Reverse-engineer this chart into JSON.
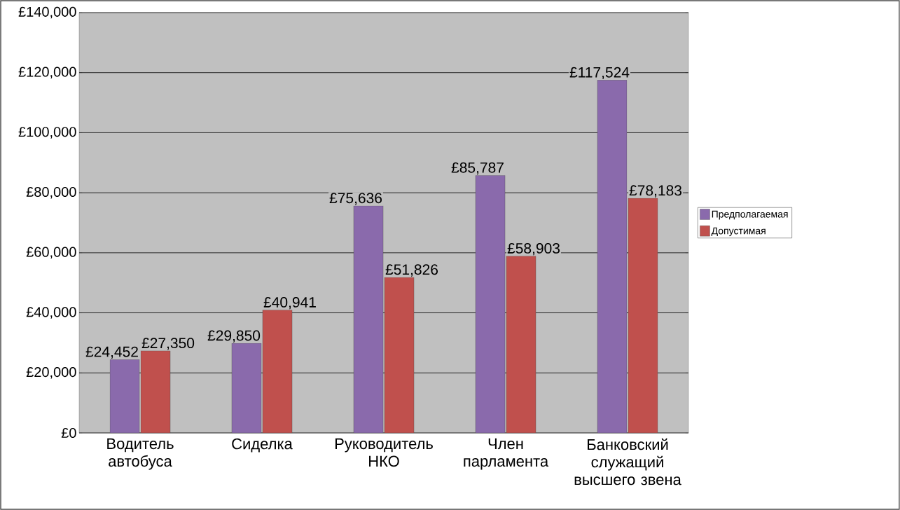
{
  "chart_data": {
    "type": "bar",
    "categories": [
      "Водитель автобуса",
      "Сиделка",
      "Руководитель НКО",
      "Член парламента",
      "Банковский служащий высшего звена"
    ],
    "series": [
      {
        "name": "Предполагаемая",
        "color": "#8a6aac",
        "values": [
          24452,
          29850,
          75636,
          85787,
          117524
        ],
        "value_labels": [
          "£24,452",
          "£29,850",
          "£75,636",
          "£85,787",
          "£117,524"
        ]
      },
      {
        "name": "Допустимая",
        "color": "#c0504d",
        "values": [
          27350,
          40941,
          51826,
          58903,
          78183
        ],
        "value_labels": [
          "£27,350",
          "£40,941",
          "£51,826",
          "£58,903",
          "£78,183"
        ]
      }
    ],
    "ylim": [
      0,
      140000
    ],
    "yticks": [
      {
        "value": 0,
        "label": "£0"
      },
      {
        "value": 20000,
        "label": "£20,000"
      },
      {
        "value": 40000,
        "label": "£40,000"
      },
      {
        "value": 60000,
        "label": "£60,000"
      },
      {
        "value": 80000,
        "label": "£80,000"
      },
      {
        "value": 100000,
        "label": "£100,000"
      },
      {
        "value": 120000,
        "label": "£120,000"
      },
      {
        "value": 140000,
        "label": "£140,000"
      }
    ],
    "grid": "y",
    "legend": "right"
  }
}
